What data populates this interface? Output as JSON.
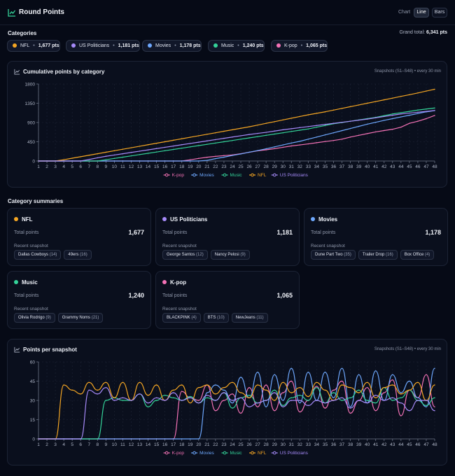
{
  "app": {
    "title": "Round Points"
  },
  "toolbar": {
    "chart_label": "Chart",
    "line_label": "Line",
    "bars_label": "Bars",
    "active": "Line"
  },
  "categories_section": {
    "title": "Categories",
    "grand_total_label": "Grand total:",
    "grand_total": "6,341 pts"
  },
  "chips": [
    {
      "name": "NFL",
      "pts": "1,677 pts",
      "color": "#f5a623"
    },
    {
      "name": "US Politicians",
      "pts": "1,181 pts",
      "color": "#a78bfa"
    },
    {
      "name": "Movies",
      "pts": "1,178 pts",
      "color": "#6ea8fe"
    },
    {
      "name": "Music",
      "pts": "1,240 pts",
      "color": "#34d399"
    },
    {
      "name": "K-pop",
      "pts": "1,065 pts",
      "color": "#f472b6"
    }
  ],
  "cumulative": {
    "title": "Cumulative points by category",
    "subtitle": "Snapshots (S1–S48) • every 30 min"
  },
  "summaries": {
    "title": "Category summaries",
    "total_label": "Total points",
    "recent_label": "Recent snapshot",
    "cards": [
      {
        "name": "NFL",
        "color": "#f5a623",
        "total": "1,677",
        "tags": [
          {
            "label": "Dallas Cowboys",
            "count": "(14)"
          },
          {
            "label": "49ers",
            "count": "(16)"
          }
        ]
      },
      {
        "name": "US Politicians",
        "color": "#a78bfa",
        "total": "1,181",
        "tags": [
          {
            "label": "George Santos",
            "count": "(12)"
          },
          {
            "label": "Nancy Pelosi",
            "count": "(9)"
          }
        ]
      },
      {
        "name": "Movies",
        "color": "#6ea8fe",
        "total": "1,178",
        "tags": [
          {
            "label": "Dune Part Two",
            "count": "(35)"
          },
          {
            "label": "Trailer Drop",
            "count": "(16)"
          },
          {
            "label": "Box Office",
            "count": "(4)"
          }
        ]
      },
      {
        "name": "Music",
        "color": "#34d399",
        "total": "1,240",
        "tags": [
          {
            "label": "Olivia Rodrigo",
            "count": "(9)"
          },
          {
            "label": "Grammy Noms",
            "count": "(21)"
          }
        ]
      },
      {
        "name": "K-pop",
        "color": "#f472b6",
        "total": "1,065",
        "tags": [
          {
            "label": "BLACKPINK",
            "count": "(4)"
          },
          {
            "label": "BTS",
            "count": "(10)"
          },
          {
            "label": "NewJeans",
            "count": "(11)"
          }
        ]
      }
    ]
  },
  "per_snapshot": {
    "title": "Points per snapshot",
    "subtitle": "Snapshots (S1–S48) • every 30 min"
  },
  "chart_data": [
    {
      "type": "line",
      "title": "Cumulative points by category",
      "x": [
        1,
        2,
        3,
        4,
        5,
        6,
        7,
        8,
        9,
        10,
        11,
        12,
        13,
        14,
        15,
        16,
        17,
        18,
        19,
        20,
        21,
        22,
        23,
        24,
        25,
        26,
        27,
        28,
        29,
        30,
        31,
        32,
        33,
        34,
        35,
        36,
        37,
        38,
        39,
        40,
        41,
        42,
        43,
        44,
        45,
        46,
        47,
        48
      ],
      "ylim": [
        0,
        1800
      ],
      "yticks": [
        0,
        450,
        900,
        1350,
        1800
      ],
      "legend": "bottom",
      "grid": true,
      "series": [
        {
          "name": "K-pop",
          "color": "#f472b6",
          "values": [
            0,
            0,
            0,
            0,
            0,
            0,
            0,
            0,
            0,
            0,
            0,
            0,
            0,
            0,
            0,
            0,
            0,
            0,
            28,
            60,
            88,
            108,
            126,
            142,
            170,
            205,
            238,
            262,
            288,
            320,
            352,
            375,
            400,
            428,
            455,
            480,
            510,
            560,
            600,
            640,
            680,
            712,
            742,
            790,
            880,
            930,
            990,
            1065
          ]
        },
        {
          "name": "Movies",
          "color": "#6ea8fe",
          "values": [
            0,
            0,
            0,
            0,
            0,
            0,
            0,
            0,
            0,
            0,
            0,
            0,
            0,
            0,
            0,
            0,
            0,
            0,
            0,
            0,
            15,
            55,
            90,
            130,
            165,
            205,
            245,
            285,
            330,
            375,
            420,
            460,
            510,
            560,
            610,
            660,
            710,
            760,
            810,
            860,
            905,
            950,
            990,
            1030,
            1070,
            1110,
            1150,
            1178
          ]
        },
        {
          "name": "Music",
          "color": "#34d399",
          "values": [
            0,
            0,
            0,
            0,
            0,
            0,
            0,
            0,
            30,
            60,
            90,
            120,
            150,
            180,
            210,
            240,
            270,
            300,
            330,
            360,
            390,
            420,
            450,
            480,
            510,
            540,
            570,
            600,
            630,
            660,
            690,
            720,
            750,
            790,
            830,
            870,
            900,
            930,
            960,
            990,
            1020,
            1060,
            1100,
            1130,
            1160,
            1190,
            1215,
            1240
          ]
        },
        {
          "name": "NFL",
          "color": "#f5a623",
          "values": [
            0,
            0,
            0,
            30,
            65,
            100,
            135,
            170,
            205,
            240,
            275,
            310,
            345,
            380,
            415,
            450,
            485,
            520,
            555,
            590,
            625,
            660,
            695,
            730,
            765,
            800,
            840,
            880,
            920,
            960,
            1000,
            1040,
            1080,
            1115,
            1150,
            1190,
            1230,
            1270,
            1310,
            1350,
            1390,
            1430,
            1470,
            1510,
            1550,
            1590,
            1635,
            1677
          ]
        },
        {
          "name": "US Politicians",
          "color": "#a78bfa",
          "values": [
            0,
            0,
            0,
            0,
            0,
            0,
            35,
            75,
            110,
            140,
            170,
            200,
            230,
            260,
            290,
            320,
            350,
            380,
            410,
            440,
            470,
            500,
            530,
            560,
            590,
            620,
            645,
            670,
            700,
            730,
            755,
            780,
            805,
            830,
            855,
            880,
            905,
            930,
            955,
            980,
            1010,
            1040,
            1070,
            1100,
            1120,
            1140,
            1160,
            1181
          ]
        }
      ]
    },
    {
      "type": "line",
      "title": "Points per snapshot",
      "x": [
        1,
        2,
        3,
        4,
        5,
        6,
        7,
        8,
        9,
        10,
        11,
        12,
        13,
        14,
        15,
        16,
        17,
        18,
        19,
        20,
        21,
        22,
        23,
        24,
        25,
        26,
        27,
        28,
        29,
        30,
        31,
        32,
        33,
        34,
        35,
        36,
        37,
        38,
        39,
        40,
        41,
        42,
        43,
        44,
        45,
        46,
        47,
        48
      ],
      "ylim": [
        0,
        60
      ],
      "yticks": [
        0,
        15,
        30,
        45,
        60
      ],
      "legend": "bottom",
      "grid": true,
      "series": [
        {
          "name": "K-pop",
          "color": "#f472b6",
          "values": [
            0,
            0,
            0,
            0,
            0,
            0,
            0,
            0,
            0,
            0,
            0,
            0,
            0,
            0,
            0,
            0,
            0,
            37,
            32,
            30,
            42,
            22,
            30,
            35,
            20,
            40,
            25,
            42,
            22,
            36,
            45,
            21,
            30,
            41,
            24,
            38,
            45,
            20,
            30,
            40,
            22,
            36,
            46,
            18,
            38,
            32,
            50,
            25
          ]
        },
        {
          "name": "Movies",
          "color": "#6ea8fe",
          "values": [
            0,
            0,
            0,
            0,
            0,
            0,
            0,
            0,
            0,
            0,
            0,
            0,
            0,
            0,
            0,
            0,
            0,
            0,
            0,
            0,
            36,
            42,
            38,
            28,
            48,
            32,
            52,
            25,
            50,
            30,
            55,
            28,
            52,
            30,
            52,
            32,
            55,
            25,
            50,
            28,
            53,
            30,
            50,
            36,
            45,
            32,
            25,
            55
          ]
        },
        {
          "name": "Music",
          "color": "#34d399",
          "values": [
            0,
            0,
            0,
            0,
            0,
            0,
            0,
            0,
            30,
            32,
            30,
            30,
            35,
            25,
            30,
            34,
            32,
            30,
            33,
            28,
            32,
            30,
            36,
            24,
            32,
            34,
            28,
            30,
            38,
            26,
            32,
            34,
            30,
            40,
            28,
            36,
            30,
            32,
            38,
            30,
            28,
            40,
            30,
            32,
            38,
            30,
            26,
            32
          ]
        },
        {
          "name": "NFL",
          "color": "#f5a623",
          "values": [
            0,
            0,
            0,
            42,
            38,
            35,
            44,
            38,
            44,
            32,
            44,
            30,
            44,
            34,
            42,
            30,
            38,
            42,
            28,
            40,
            42,
            35,
            40,
            44,
            36,
            32,
            42,
            38,
            30,
            44,
            36,
            40,
            33,
            44,
            38,
            30,
            42,
            40,
            36,
            44,
            32,
            40,
            42,
            35,
            38,
            44,
            30,
            42
          ]
        },
        {
          "name": "US Politicians",
          "color": "#a78bfa",
          "values": [
            0,
            0,
            0,
            0,
            0,
            0,
            38,
            35,
            40,
            30,
            32,
            30,
            35,
            28,
            32,
            30,
            36,
            30,
            32,
            28,
            34,
            30,
            36,
            30,
            32,
            25,
            28,
            30,
            36,
            25,
            30,
            30,
            26,
            30,
            28,
            30,
            32,
            24,
            30,
            28,
            34,
            30,
            32,
            28,
            22,
            30,
            30,
            22
          ]
        }
      ]
    }
  ]
}
